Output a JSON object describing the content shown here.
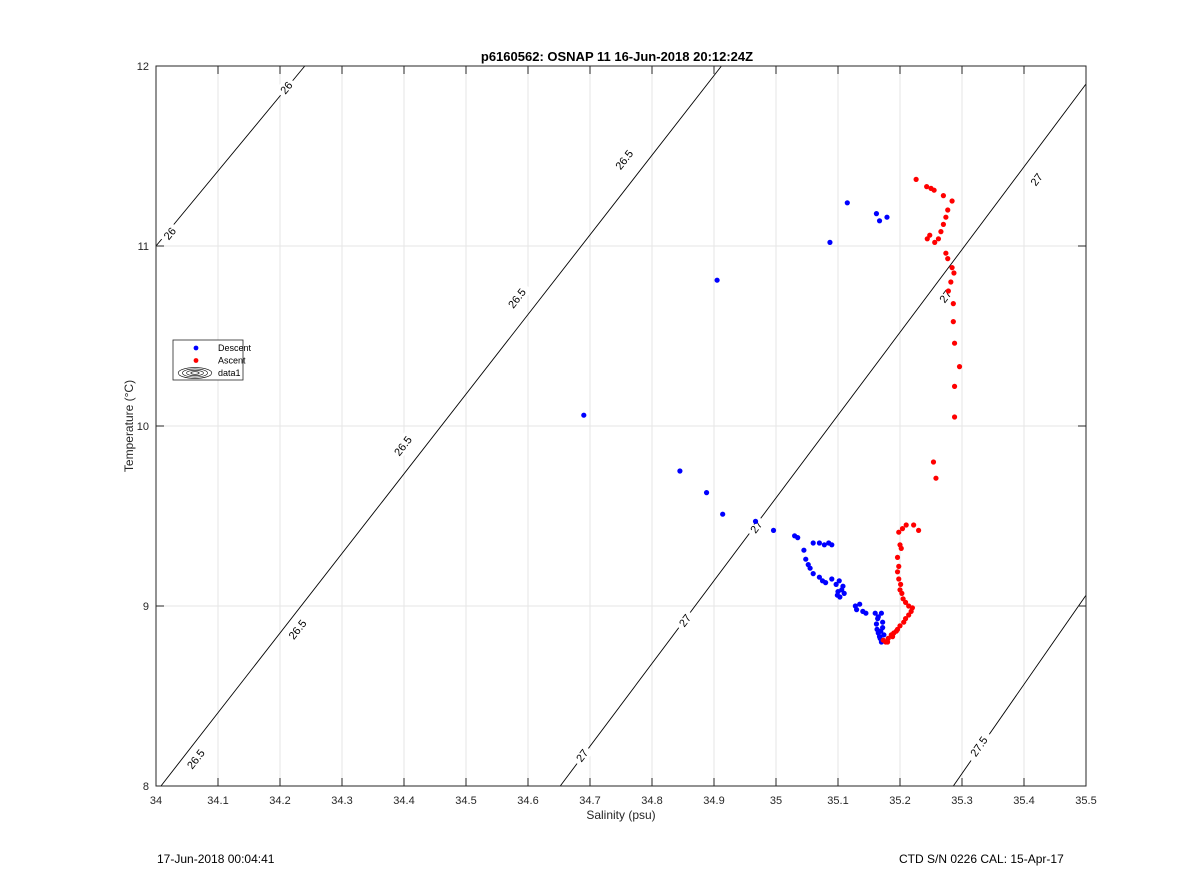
{
  "chart_data": {
    "type": "scatter",
    "title": "p6160562: OSNAP 11 16-Jun-2018 20:12:24Z",
    "xlabel": "Salinity (psu)",
    "ylabel": "Temperature (°C)",
    "xlim": [
      34,
      35.5
    ],
    "ylim": [
      8,
      12
    ],
    "xticks": [
      34,
      34.1,
      34.2,
      34.3,
      34.4,
      34.5,
      34.6,
      34.7,
      34.8,
      34.9,
      35,
      35.1,
      35.2,
      35.3,
      35.4,
      35.5
    ],
    "xtick_labels": [
      "34",
      "34.1",
      "34.2",
      "34.3",
      "34.4",
      "34.5",
      "34.6",
      "34.7",
      "34.8",
      "34.9",
      "35",
      "35.1",
      "35.2",
      "35.3",
      "35.4",
      "35.5"
    ],
    "yticks": [
      8,
      9,
      10,
      11,
      12
    ],
    "ytick_labels": [
      "8",
      "9",
      "10",
      "11",
      "12"
    ],
    "grid": true,
    "legend_position": "left",
    "legend": [
      {
        "label": "Descent",
        "color": "#0000ff",
        "kind": "marker"
      },
      {
        "label": "Ascent",
        "color": "#ff0000",
        "kind": "marker"
      },
      {
        "label": "data1",
        "color": "#000000",
        "kind": "contour"
      }
    ],
    "series": [
      {
        "name": "Descent",
        "color": "#0000ff",
        "points": [
          [
            34.69,
            10.06
          ],
          [
            34.905,
            10.81
          ],
          [
            35.087,
            11.02
          ],
          [
            35.115,
            11.24
          ],
          [
            35.162,
            11.18
          ],
          [
            35.167,
            11.14
          ],
          [
            35.179,
            11.16
          ],
          [
            34.845,
            9.75
          ],
          [
            34.888,
            9.63
          ],
          [
            34.914,
            9.51
          ],
          [
            34.967,
            9.47
          ],
          [
            34.996,
            9.42
          ],
          [
            35.03,
            9.39
          ],
          [
            35.035,
            9.38
          ],
          [
            35.06,
            9.35
          ],
          [
            35.07,
            9.35
          ],
          [
            35.078,
            9.34
          ],
          [
            35.085,
            9.35
          ],
          [
            35.09,
            9.34
          ],
          [
            35.045,
            9.31
          ],
          [
            35.048,
            9.26
          ],
          [
            35.052,
            9.23
          ],
          [
            35.055,
            9.21
          ],
          [
            35.06,
            9.18
          ],
          [
            35.07,
            9.16
          ],
          [
            35.075,
            9.14
          ],
          [
            35.08,
            9.13
          ],
          [
            35.09,
            9.15
          ],
          [
            35.097,
            9.12
          ],
          [
            35.102,
            9.14
          ],
          [
            35.1,
            9.08
          ],
          [
            35.103,
            9.05
          ],
          [
            35.106,
            9.09
          ],
          [
            35.108,
            9.11
          ],
          [
            35.099,
            9.06
          ],
          [
            35.11,
            9.07
          ],
          [
            35.128,
            9.0
          ],
          [
            35.13,
            8.98
          ],
          [
            35.135,
            9.01
          ],
          [
            35.14,
            8.97
          ],
          [
            35.145,
            8.96
          ],
          [
            35.16,
            8.96
          ],
          [
            35.165,
            8.94
          ],
          [
            35.17,
            8.96
          ],
          [
            35.162,
            8.9
          ],
          [
            35.165,
            8.85
          ],
          [
            35.168,
            8.82
          ],
          [
            35.17,
            8.8
          ],
          [
            35.163,
            8.87
          ],
          [
            35.172,
            8.88
          ],
          [
            35.167,
            8.83
          ],
          [
            35.172,
            8.91
          ],
          [
            35.164,
            8.93
          ],
          [
            35.169,
            8.86
          ],
          [
            35.174,
            8.84
          ]
        ]
      },
      {
        "name": "Ascent",
        "color": "#ff0000",
        "points": [
          [
            35.226,
            11.37
          ],
          [
            35.243,
            11.33
          ],
          [
            35.25,
            11.32
          ],
          [
            35.255,
            11.31
          ],
          [
            35.27,
            11.28
          ],
          [
            35.284,
            11.25
          ],
          [
            35.277,
            11.2
          ],
          [
            35.274,
            11.16
          ],
          [
            35.27,
            11.12
          ],
          [
            35.266,
            11.08
          ],
          [
            35.262,
            11.04
          ],
          [
            35.256,
            11.02
          ],
          [
            35.244,
            11.04
          ],
          [
            35.248,
            11.06
          ],
          [
            35.274,
            10.96
          ],
          [
            35.277,
            10.93
          ],
          [
            35.284,
            10.88
          ],
          [
            35.287,
            10.85
          ],
          [
            35.282,
            10.8
          ],
          [
            35.278,
            10.75
          ],
          [
            35.286,
            10.68
          ],
          [
            35.286,
            10.58
          ],
          [
            35.288,
            10.46
          ],
          [
            35.296,
            10.33
          ],
          [
            35.288,
            10.22
          ],
          [
            35.288,
            10.05
          ],
          [
            35.254,
            9.8
          ],
          [
            35.258,
            9.71
          ],
          [
            35.198,
            9.41
          ],
          [
            35.204,
            9.43
          ],
          [
            35.21,
            9.45
          ],
          [
            35.222,
            9.45
          ],
          [
            35.23,
            9.42
          ],
          [
            35.2,
            9.34
          ],
          [
            35.202,
            9.32
          ],
          [
            35.196,
            9.27
          ],
          [
            35.198,
            9.22
          ],
          [
            35.196,
            9.19
          ],
          [
            35.198,
            9.15
          ],
          [
            35.201,
            9.12
          ],
          [
            35.2,
            9.09
          ],
          [
            35.203,
            9.07
          ],
          [
            35.205,
            9.04
          ],
          [
            35.209,
            9.02
          ],
          [
            35.214,
            9.0
          ],
          [
            35.22,
            8.99
          ],
          [
            35.218,
            8.97
          ],
          [
            35.214,
            8.95
          ],
          [
            35.209,
            8.93
          ],
          [
            35.206,
            8.91
          ],
          [
            35.2,
            8.89
          ],
          [
            35.196,
            8.87
          ],
          [
            35.19,
            8.85
          ],
          [
            35.186,
            8.84
          ],
          [
            35.181,
            8.82
          ],
          [
            35.177,
            8.8
          ],
          [
            35.173,
            8.81
          ],
          [
            35.188,
            8.83
          ],
          [
            35.194,
            8.86
          ],
          [
            35.18,
            8.8
          ]
        ]
      }
    ],
    "isopycnals": [
      {
        "label": "26",
        "start": [
          34.0,
          11.0
        ],
        "end": [
          34.24,
          12.0
        ],
        "label_at": [
          [
            34.022,
            11.07
          ],
          [
            34.21,
            11.88
          ]
        ]
      },
      {
        "label": "26.5",
        "start": [
          34.008,
          8.0
        ],
        "end": [
          34.912,
          12.0
        ],
        "label_at": [
          [
            34.064,
            8.15
          ],
          [
            34.228,
            8.87
          ],
          [
            34.398,
            9.89
          ],
          [
            34.582,
            10.71
          ],
          [
            34.755,
            11.48
          ]
        ]
      },
      {
        "label": "27",
        "start": [
          34.652,
          8.0
        ],
        "end": [
          35.5,
          11.9
        ],
        "label_at": [
          [
            34.687,
            8.17
          ],
          [
            34.853,
            8.92
          ],
          [
            34.968,
            9.44
          ],
          [
            35.273,
            10.72
          ],
          [
            35.42,
            11.37
          ]
        ]
      },
      {
        "label": "27.5",
        "start": [
          35.286,
          8.0
        ],
        "end": [
          35.5,
          9.06
        ],
        "label_at": [
          [
            35.327,
            8.22
          ]
        ]
      }
    ]
  },
  "footer": {
    "left": "17-Jun-2018 00:04:41",
    "right": "CTD S/N 0226  CAL: 15-Apr-17"
  }
}
